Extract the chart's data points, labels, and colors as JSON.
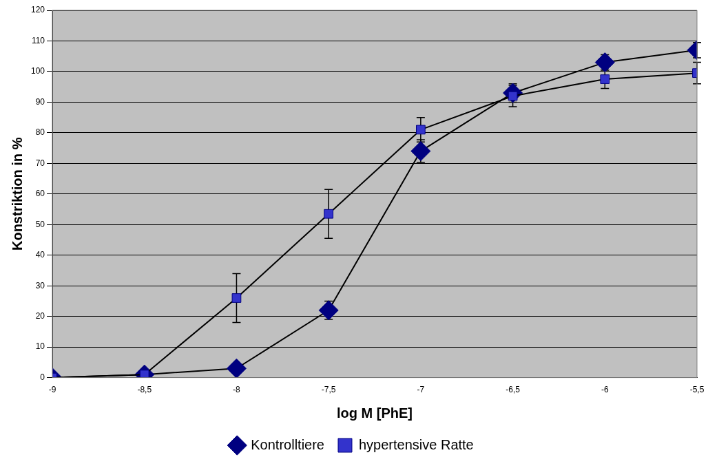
{
  "chart_data": {
    "type": "line",
    "xlabel": "log M [PhE]",
    "ylabel": "Konstriktion in %",
    "x": [
      -9,
      -8.5,
      -8,
      -7.5,
      -7,
      -6.5,
      -6,
      -5.5
    ],
    "series": [
      {
        "name": "Kontrolltiere",
        "color": "#000080",
        "marker": "diamond",
        "values": [
          0,
          1,
          3,
          22,
          74,
          93,
          103,
          107
        ],
        "errors": [
          null,
          null,
          null,
          3,
          3.7,
          3,
          2.5,
          2.5
        ]
      },
      {
        "name": "hypertensive Ratte",
        "color": "#3333cc",
        "marker": "square",
        "values": [
          0,
          1,
          26,
          53.5,
          81,
          92,
          97.5,
          99.5
        ],
        "errors": [
          null,
          null,
          8,
          8,
          4,
          3.5,
          3,
          3.5
        ]
      }
    ],
    "xlim": [
      -9,
      -5.5
    ],
    "xticks": [
      -9,
      {
        "value": -8.5,
        "label": "-8,5"
      },
      -8,
      {
        "value": -7.5,
        "label": "-7,5"
      },
      -7,
      {
        "value": -6.5,
        "label": "-6,5"
      },
      -6,
      {
        "value": -5.5,
        "label": "-5,5"
      }
    ],
    "ylim": [
      0,
      120
    ],
    "yticks": [
      0,
      10,
      20,
      30,
      40,
      50,
      60,
      70,
      80,
      90,
      100,
      110,
      120
    ],
    "grid": "y",
    "legend": "bottom"
  }
}
